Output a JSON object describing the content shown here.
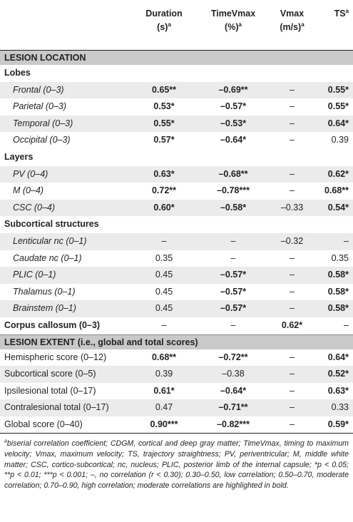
{
  "headers": {
    "c1_l1": "Duration",
    "c1_l2": "(s)",
    "c1_sup": "a",
    "c2_l1": "TimeVmax",
    "c2_l2": "(%)",
    "c2_sup": "a",
    "c3_l1": "Vmax",
    "c3_l2": "(m/s)",
    "c3_sup": "a",
    "c4_l1": "TS",
    "c4_sup": "a"
  },
  "sections": {
    "location": "LESION LOCATION",
    "extent": "LESION EXTENT (i.e., global and total scores)"
  },
  "subheads": {
    "lobes": "Lobes",
    "layers": "Layers",
    "subcortical": "Subcortical structures"
  },
  "lobes": [
    {
      "label": "Frontal (0–3)",
      "v": [
        "0.65**",
        "–0.69**",
        "–",
        "0.55*"
      ]
    },
    {
      "label": "Parietal (0–3)",
      "v": [
        "0.53*",
        "–0.57*",
        "–",
        "0.55*"
      ]
    },
    {
      "label": "Temporal (0–3)",
      "v": [
        "0.55*",
        "–0.53*",
        "–",
        "0.64*"
      ]
    },
    {
      "label": "Occipital (0–3)",
      "v": [
        "0.57*",
        "–0.64*",
        "–",
        "0.39"
      ]
    }
  ],
  "layers": [
    {
      "label": "PV (0–4)",
      "v": [
        "0.63*",
        "–0.68**",
        "–",
        "0.62*"
      ]
    },
    {
      "label": "M (0–4)",
      "v": [
        "0.72**",
        "–0.78***",
        "–",
        "0.68**"
      ]
    },
    {
      "label": "CSC (0–4)",
      "v": [
        "0.60*",
        "–0.58*",
        "–0.33",
        "0.54*"
      ]
    }
  ],
  "subcortical": [
    {
      "label": "Lenticular nc (0–1)",
      "v": [
        "–",
        "–",
        "–0.32",
        "–"
      ]
    },
    {
      "label": "Caudate nc (0–1)",
      "v": [
        "0.35",
        "–",
        "–",
        "0.35"
      ]
    },
    {
      "label": "PLIC (0–1)",
      "v": [
        "0.45",
        "–0.57*",
        "–",
        "0.58*"
      ]
    },
    {
      "label": "Thalamus (0–1)",
      "v": [
        "0.45",
        "–0.57*",
        "–",
        "0.58*"
      ]
    },
    {
      "label": "Brainstem (0–1)",
      "v": [
        "0.45",
        "–0.57*",
        "–",
        "0.58*"
      ]
    }
  ],
  "corpus": {
    "label": "Corpus callosum (0–3)",
    "v": [
      "–",
      "–",
      "0.62*",
      "–"
    ]
  },
  "extent": [
    {
      "label": "Hemispheric score (0–12)",
      "v": [
        "0.68**",
        "–0.72**",
        "–",
        "0.64*"
      ]
    },
    {
      "label": "Subcortical score (0–5)",
      "v": [
        "0.39",
        "–0.38",
        "–",
        "0.52*"
      ]
    },
    {
      "label": "Ipsilesional total (0–17)",
      "v": [
        "0.61*",
        "–0.64*",
        "–",
        "0.63*"
      ]
    },
    {
      "label": "Contralesional total (0–17)",
      "v": [
        "0.47",
        "–0.71**",
        "–",
        "0.33"
      ]
    },
    {
      "label": "Global score (0–40)",
      "v": [
        "0.90***",
        "–0.82***",
        "–",
        "0.59*"
      ]
    }
  ],
  "footnote": {
    "sup": "a",
    "text": "biserial correlation coefficient; CDGM, cortical and deep gray matter; TimeVmax, timing to maximum velocity; Vmax, maximum velocity; TS, trajectory straightness; PV, periventricular; M, middle white matter; CSC, cortico-subcortical; nc, nucleus; PLIC, posterior limb of the internal capsule; *p < 0.05; **p < 0.01; ***p < 0.001; –, no correlation (r < 0.30); 0.30–0.50, low correlation; 0.50–0.70, moderate correlation; 0.70–0.90, high correlation; moderate correlations are highlighted in bold."
  }
}
